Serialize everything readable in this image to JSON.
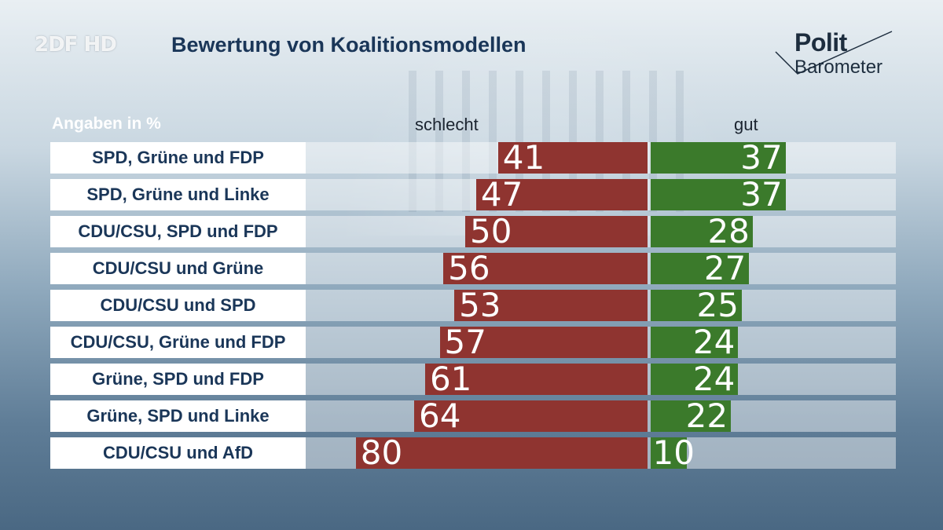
{
  "header": {
    "channel_logo": "2DF HD",
    "title": "Bewertung von Koalitionsmodellen",
    "brand_line1": "Polit",
    "brand_line2": "Barometer"
  },
  "chart_data": {
    "type": "bar",
    "orientation": "horizontal-diverging",
    "title": "Bewertung von Koalitionsmodellen",
    "unit_label": "Angaben in %",
    "categories": [
      "SPD, Grüne und FDP",
      "SPD, Grüne und Linke",
      "CDU/CSU, SPD und FDP",
      "CDU/CSU und Grüne",
      "CDU/CSU und SPD",
      "CDU/CSU, Grüne und FDP",
      "Grüne, SPD und FDP",
      "Grüne, SPD und Linke",
      "CDU/CSU und AfD"
    ],
    "series": [
      {
        "name": "schlecht",
        "color": "#8f3430",
        "values": [
          41,
          47,
          50,
          56,
          53,
          57,
          61,
          64,
          80
        ]
      },
      {
        "name": "gut",
        "color": "#3b7a2b",
        "values": [
          37,
          37,
          28,
          27,
          25,
          24,
          24,
          22,
          10
        ]
      }
    ],
    "xlim": [
      0,
      100
    ]
  }
}
